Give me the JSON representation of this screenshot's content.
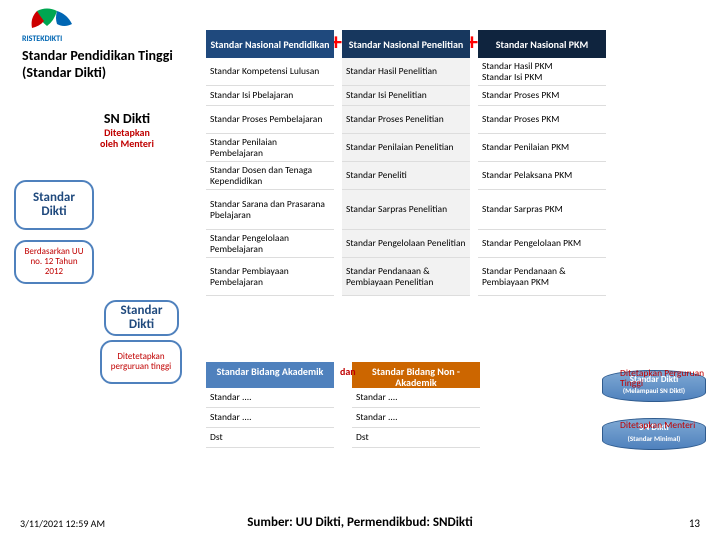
{
  "logo_text": "RISTEKDIKTI",
  "title_l1": "Standar Pendidikan Tinggi",
  "title_l2": "(Standar Dikti)",
  "sn_title": "SN Dikti",
  "sn_sub1": "Ditetapkan",
  "sn_sub2": "oleh Menteri",
  "bub_a1": "Standar",
  "bub_a2": "Dikti",
  "bub_a_sub": "Berdasarkan UU no. 12 Tahun 2012",
  "bub_b1": "Standar",
  "bub_b2": "Dikti",
  "bub_b_sub": "Ditetetapkan perguruan tinggi",
  "colors": {
    "hdr1": "#1f497d",
    "hdr2": "#17375e",
    "hdr3": "#0f243e",
    "c2bg": "#f2f2f2",
    "sec2a": "#4f81bd",
    "sec2b": "#cc6600",
    "logo_g": "#00a651",
    "logo_b": "#0066b3"
  },
  "heights": [
    28,
    28,
    20,
    28,
    28,
    28,
    40,
    28,
    38
  ],
  "heights2": [
    26,
    20,
    20,
    20
  ],
  "headers": [
    "Standar Nasional Pendidikan",
    "Standar  Nasional Penelitian",
    "Standar Nasional PKM"
  ],
  "rows": [
    [
      "Standar Kompetensi Lulusan",
      "Standar Hasil Penelitian",
      "Standar Hasil PKM\nStandar Isi PKM"
    ],
    [
      "Standar Isi Pbelajaran",
      "Standar Isi Penelitian",
      "Standar Proses PKM"
    ],
    [
      "Standar Proses Pembelajaran",
      "Standar Proses Penelitian",
      "Standar  Proses PKM"
    ],
    [
      "Standar Penilaian Pembelajaran",
      "Standar Penilaian Penelitian",
      "Standar Penilaian PKM"
    ],
    [
      "Standar Dosen dan Tenaga Kependidikan",
      "Standar Peneliti",
      "Standar Pelaksana PKM"
    ],
    [
      "Standar Sarana dan Prasarana Pbelajaran",
      "Standar Sarpras Penelitian",
      "Standar Sarpras PKM"
    ],
    [
      "Standar Pengelolaan Pembelajaran",
      "Standar Pengelolaan Penelitian",
      "Standar Pengelolaan PKM"
    ],
    [
      "Standar Pembiayaan Pembelajaran",
      "Standar Pendanaan & Pembiayaan Penelitian",
      "Standar Pendanaan & Pembiayaan PKM"
    ]
  ],
  "sec2_headers": [
    "Standar Bidang Akademik",
    "Standar Bidang Non -Akademik"
  ],
  "sec2_rows": [
    [
      "Standar ....",
      "Standar ...."
    ],
    [
      "Standar ....",
      "Standar ...."
    ],
    [
      "Dst",
      "Dst"
    ]
  ],
  "dan": "dan",
  "cyl1_l1": "Standar Dikti",
  "cyl1_l2": "(Melampaui SN Dikti)",
  "cyl2_l1": "SN Dikti",
  "cyl2_l2": "(Standar Minimal)",
  "note1": "Ditetapkan Perguruan Tinggi",
  "note2": "Ditetapkan Menteri",
  "foot_l": "3/11/2021 12:59 AM",
  "foot_c": "Sumber: UU Dikti, Permendikbud: SNDikti",
  "foot_r": "13"
}
